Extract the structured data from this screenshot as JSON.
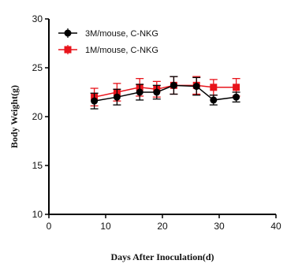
{
  "chart_data": {
    "type": "line",
    "xlabel": "Days After Inoculation(d)",
    "ylabel": "Body Weight(g)",
    "xlim": [
      0,
      40
    ],
    "ylim": [
      10,
      30
    ],
    "xticks": [
      0,
      10,
      20,
      30,
      40
    ],
    "yticks": [
      10,
      15,
      20,
      25,
      30
    ],
    "xtick_labels": [
      "0",
      "10",
      "20",
      "30",
      "40"
    ],
    "ytick_labels": [
      "10",
      "15",
      "20",
      "25",
      "30"
    ],
    "grid": false,
    "legend_position": "top-left",
    "series": [
      {
        "name": "3M/mouse, C-NKG",
        "color": "#000000",
        "marker": "circle",
        "x": [
          8,
          12,
          16,
          19,
          22,
          26,
          29,
          33
        ],
        "y": [
          21.6,
          22.0,
          22.5,
          22.5,
          23.2,
          23.1,
          21.7,
          22.0
        ],
        "err": [
          0.8,
          0.8,
          0.8,
          0.7,
          0.9,
          0.9,
          0.5,
          0.5
        ]
      },
      {
        "name": "1M/mouse, C-NKG",
        "color": "#e8141b",
        "marker": "square",
        "x": [
          8,
          12,
          16,
          19,
          22,
          26,
          29,
          33
        ],
        "y": [
          22.0,
          22.5,
          23.0,
          22.8,
          23.2,
          23.2,
          23.0,
          23.0
        ],
        "err": [
          0.9,
          0.9,
          0.9,
          0.8,
          0.9,
          0.9,
          0.8,
          0.9
        ]
      }
    ]
  }
}
